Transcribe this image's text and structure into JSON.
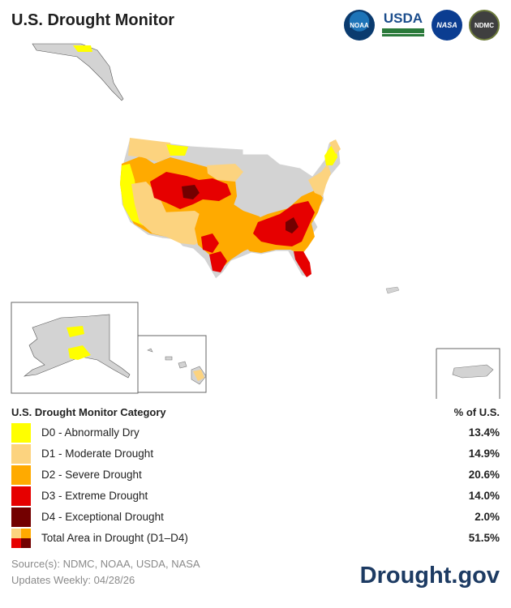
{
  "header": {
    "title": "U.S. Drought Monitor",
    "logos": [
      {
        "name": "noaa-logo",
        "label": "NOAA"
      },
      {
        "name": "usda-logo",
        "label": "USDA"
      },
      {
        "name": "nasa-logo",
        "label": "NASA"
      },
      {
        "name": "ndmc-logo",
        "label": "NDMC"
      }
    ]
  },
  "colors": {
    "no_drought": "#d3d3d3",
    "D0": "#ffff00",
    "D1": "#fcd37f",
    "D2": "#ffaa00",
    "D3": "#e60000",
    "D4": "#730000",
    "state_border": "#ffffff",
    "inset_border": "#666666"
  },
  "legend": {
    "title": "U.S. Drought Monitor Category",
    "pct_header": "% of U.S.",
    "rows": [
      {
        "label": "D0 - Abnormally Dry",
        "pct": "13.4%"
      },
      {
        "label": "D1 - Moderate Drought",
        "pct": "14.9%"
      },
      {
        "label": "D2 - Severe Drought",
        "pct": "20.6%"
      },
      {
        "label": "D3 - Extreme Drought",
        "pct": "14.0%"
      },
      {
        "label": "D4 - Exceptional Drought",
        "pct": "2.0%"
      }
    ],
    "total": {
      "label": "Total Area in Drought (D1–D4)",
      "pct": "51.5%"
    }
  },
  "footer": {
    "source": "Source(s): NDMC, NOAA, USDA, NASA",
    "updates": "Updates Weekly: 04/28/26",
    "brand": "Drought.gov"
  }
}
